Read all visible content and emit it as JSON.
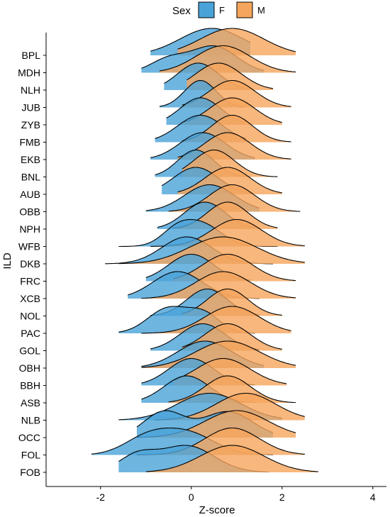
{
  "chart_data": {
    "type": "area",
    "subtype": "ridgeline-density",
    "xlabel": "Z-score",
    "ylabel": "ILD",
    "xlim": [
      -3.2,
      4.3
    ],
    "xticks": [
      -2,
      0,
      2,
      4
    ],
    "legend": {
      "title": "Sex",
      "placement": "top",
      "entries": [
        {
          "label": "F",
          "color": "#4aa3d8"
        },
        {
          "label": "M",
          "color": "#f6a55c"
        }
      ]
    },
    "categories": [
      "BPL",
      "MDH",
      "NLH",
      "JUB",
      "ZYB",
      "FMB",
      "EKB",
      "BNL",
      "AUB",
      "OBB",
      "NPH",
      "WFB",
      "DKB",
      "FRC",
      "XCB",
      "NOL",
      "PAC",
      "GOL",
      "OBH",
      "BBH",
      "ASB",
      "NLB",
      "OCC",
      "FOL",
      "FOB"
    ],
    "series": [
      {
        "name": "F",
        "values": [
          {
            "peaks": [
              [
                0.45,
                0.7,
                1.0
              ]
            ],
            "min": -0.9,
            "max": 1.3
          },
          {
            "peaks": [
              [
                0.5,
                0.5,
                1.0
              ],
              [
                -0.5,
                0.4,
                0.5
              ]
            ],
            "min": -1.1,
            "max": 1.6
          },
          {
            "peaks": [
              [
                0.15,
                0.45,
                1.0
              ]
            ],
            "min": -0.6,
            "max": 1.3
          },
          {
            "peaks": [
              [
                0.2,
                0.35,
                1.0
              ]
            ],
            "min": -0.7,
            "max": 1.2
          },
          {
            "peaks": [
              [
                0.2,
                0.45,
                1.0
              ]
            ],
            "min": -0.55,
            "max": 1.2
          },
          {
            "peaks": [
              [
                0.2,
                0.5,
                1.0
              ]
            ],
            "min": -0.8,
            "max": 1.2
          },
          {
            "peaks": [
              [
                0.25,
                0.5,
                1.0
              ]
            ],
            "min": -0.9,
            "max": 1.4
          },
          {
            "peaks": [
              [
                0.1,
                0.4,
                1.0
              ]
            ],
            "min": -0.8,
            "max": 1.3
          },
          {
            "peaks": [
              [
                0.1,
                0.5,
                1.0
              ]
            ],
            "min": -0.65,
            "max": 1.3
          },
          {
            "peaks": [
              [
                0.4,
                0.55,
                1.0
              ]
            ],
            "min": -1.0,
            "max": 1.5
          },
          {
            "peaks": [
              [
                0.3,
                0.45,
                1.0
              ]
            ],
            "min": -0.75,
            "max": 1.4
          },
          {
            "peaks": [
              [
                0.3,
                0.4,
                0.8
              ],
              [
                -0.3,
                0.35,
                0.7
              ]
            ],
            "min": -1.6,
            "max": 1.9
          },
          {
            "peaks": [
              [
                -0.1,
                0.55,
                1.0
              ]
            ],
            "min": -1.9,
            "max": 1.8
          },
          {
            "peaks": [
              [
                0.0,
                0.5,
                1.0
              ]
            ],
            "min": -1.0,
            "max": 1.3
          },
          {
            "peaks": [
              [
                -0.3,
                0.55,
                1.0
              ]
            ],
            "min": -1.4,
            "max": 1.5
          },
          {
            "peaks": [
              [
                0.35,
                0.45,
                1.0
              ]
            ],
            "min": -0.9,
            "max": 1.5
          },
          {
            "peaks": [
              [
                -0.5,
                0.45,
                1.0
              ],
              [
                0.3,
                0.35,
                0.7
              ]
            ],
            "min": -1.6,
            "max": 1.4
          },
          {
            "peaks": [
              [
                0.25,
                0.5,
                1.0
              ]
            ],
            "min": -0.9,
            "max": 1.5
          },
          {
            "peaks": [
              [
                0.3,
                0.6,
                1.0
              ]
            ],
            "min": -1.1,
            "max": 1.6
          },
          {
            "peaks": [
              [
                0.0,
                0.5,
                1.0
              ]
            ],
            "min": -1.1,
            "max": 1.4
          },
          {
            "peaks": [
              [
                -0.1,
                0.5,
                1.0
              ]
            ],
            "min": -1.1,
            "max": 1.4
          },
          {
            "peaks": [
              [
                0.4,
                0.7,
                1.0
              ]
            ],
            "min": -1.6,
            "max": 2.0
          },
          {
            "peaks": [
              [
                -0.6,
                0.45,
                1.0
              ],
              [
                0.8,
                0.55,
                1.0
              ]
            ],
            "min": -1.2,
            "max": 1.8
          },
          {
            "peaks": [
              [
                -0.1,
                0.6,
                1.0
              ],
              [
                -1.0,
                0.5,
                0.7
              ]
            ],
            "min": -2.2,
            "max": 1.8
          },
          {
            "peaks": [
              [
                -0.1,
                0.6,
                1.0
              ],
              [
                -1.2,
                0.4,
                0.6
              ]
            ],
            "min": -1.6,
            "max": 1.7
          }
        ]
      },
      {
        "name": "M",
        "values": [
          {
            "peaks": [
              [
                0.9,
                0.7,
                1.0
              ]
            ],
            "min": -0.3,
            "max": 2.3
          },
          {
            "peaks": [
              [
                0.7,
                0.6,
                1.0
              ]
            ],
            "min": -0.7,
            "max": 2.3
          },
          {
            "peaks": [
              [
                0.6,
                0.5,
                1.0
              ]
            ],
            "min": -0.1,
            "max": 1.8
          },
          {
            "peaks": [
              [
                0.9,
                0.5,
                1.0
              ]
            ],
            "min": -0.2,
            "max": 2.2
          },
          {
            "peaks": [
              [
                0.9,
                0.5,
                1.0
              ]
            ],
            "min": -0.2,
            "max": 2.0
          },
          {
            "peaks": [
              [
                0.9,
                0.45,
                1.0
              ]
            ],
            "min": -0.2,
            "max": 2.2
          },
          {
            "peaks": [
              [
                0.8,
                0.5,
                1.0
              ]
            ],
            "min": -0.3,
            "max": 2.2
          },
          {
            "peaks": [
              [
                0.5,
                0.45,
                1.0
              ]
            ],
            "min": -0.2,
            "max": 1.9
          },
          {
            "peaks": [
              [
                0.8,
                0.5,
                1.0
              ]
            ],
            "min": -0.3,
            "max": 2.0
          },
          {
            "peaks": [
              [
                0.9,
                0.5,
                1.0
              ]
            ],
            "min": -0.5,
            "max": 2.4
          },
          {
            "peaks": [
              [
                0.8,
                0.45,
                1.0
              ]
            ],
            "min": -0.4,
            "max": 1.9
          },
          {
            "peaks": [
              [
                1.0,
                0.55,
                1.0
              ]
            ],
            "min": -0.9,
            "max": 2.5
          },
          {
            "peaks": [
              [
                0.7,
                0.75,
                1.0
              ]
            ],
            "min": -1.6,
            "max": 2.5
          },
          {
            "peaks": [
              [
                0.8,
                0.55,
                1.0
              ]
            ],
            "min": -0.4,
            "max": 2.3
          },
          {
            "peaks": [
              [
                0.7,
                0.6,
                1.0
              ]
            ],
            "min": -1.1,
            "max": 2.3
          },
          {
            "peaks": [
              [
                0.8,
                0.45,
                1.0
              ]
            ],
            "min": -0.2,
            "max": 2.0
          },
          {
            "peaks": [
              [
                0.9,
                0.6,
                1.0
              ]
            ],
            "min": -1.1,
            "max": 2.2
          },
          {
            "peaks": [
              [
                0.8,
                0.5,
                1.0
              ]
            ],
            "min": -0.2,
            "max": 2.0
          },
          {
            "peaks": [
              [
                0.8,
                0.7,
                1.0
              ]
            ],
            "min": -1.1,
            "max": 2.3
          },
          {
            "peaks": [
              [
                0.7,
                0.6,
                1.0
              ]
            ],
            "min": -0.4,
            "max": 2.1
          },
          {
            "peaks": [
              [
                0.8,
                0.5,
                1.0
              ]
            ],
            "min": -0.5,
            "max": 2.3
          },
          {
            "peaks": [
              [
                1.2,
                0.65,
                1.0
              ]
            ],
            "min": -0.8,
            "max": 2.5
          },
          {
            "peaks": [
              [
                1.0,
                0.7,
                1.0
              ]
            ],
            "min": -1.2,
            "max": 2.3
          },
          {
            "peaks": [
              [
                0.9,
                0.6,
                1.0
              ]
            ],
            "min": -1.2,
            "max": 2.5
          },
          {
            "peaks": [
              [
                0.9,
                0.7,
                1.0
              ]
            ],
            "min": -1.0,
            "max": 2.8
          }
        ]
      }
    ]
  }
}
